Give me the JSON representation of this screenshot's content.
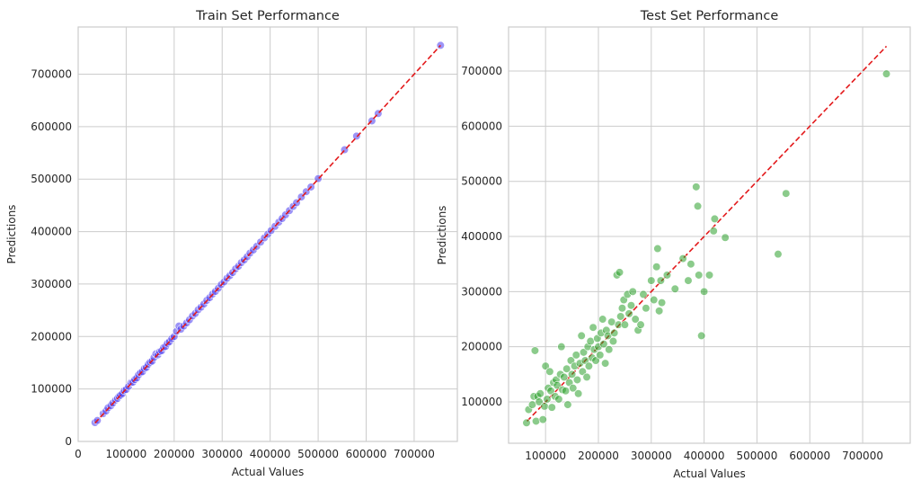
{
  "chart_data": [
    {
      "type": "scatter",
      "title": "Train Set Performance",
      "xlabel": "Actual Values",
      "ylabel": "Predictions",
      "xlim": [
        0,
        790000
      ],
      "ylim": [
        0,
        790000
      ],
      "xticks": [
        0,
        100000,
        200000,
        300000,
        400000,
        500000,
        600000,
        700000
      ],
      "yticks": [
        0,
        100000,
        200000,
        300000,
        400000,
        500000,
        600000,
        700000
      ],
      "grid": true,
      "point_color": "#4a3df0",
      "reference_line": {
        "from": [
          34900,
          34900
        ],
        "to": [
          755000,
          755000
        ],
        "color": "#e31a1c",
        "style": "dashed"
      },
      "series": [
        {
          "points": [
            [
              35000,
              36000
            ],
            [
              40000,
              40000
            ],
            [
              52000,
              53000
            ],
            [
              58000,
              58000
            ],
            [
              62000,
              64000
            ],
            [
              68000,
              68000
            ],
            [
              72000,
              73000
            ],
            [
              78000,
              79000
            ],
            [
              82000,
              82000
            ],
            [
              85000,
              86000
            ],
            [
              88000,
              88000
            ],
            [
              92000,
              91000
            ],
            [
              96000,
              97000
            ],
            [
              100000,
              99000
            ],
            [
              105000,
              105000
            ],
            [
              110000,
              112000
            ],
            [
              114000,
              113000
            ],
            [
              118000,
              118000
            ],
            [
              122000,
              121000
            ],
            [
              126000,
              127000
            ],
            [
              130000,
              131000
            ],
            [
              134000,
              133000
            ],
            [
              138000,
              139000
            ],
            [
              142000,
              141000
            ],
            [
              146000,
              147000
            ],
            [
              150000,
              151000
            ],
            [
              154000,
              153000
            ],
            [
              158000,
              160000
            ],
            [
              162000,
              167000
            ],
            [
              166000,
              165000
            ],
            [
              170000,
              171000
            ],
            [
              174000,
              173000
            ],
            [
              178000,
              179000
            ],
            [
              182000,
              181000
            ],
            [
              186000,
              187000
            ],
            [
              190000,
              190000
            ],
            [
              195000,
              196000
            ],
            [
              200000,
              200000
            ],
            [
              205000,
              210000
            ],
            [
              210000,
              220000
            ],
            [
              214000,
              214000
            ],
            [
              220000,
              220000
            ],
            [
              226000,
              226000
            ],
            [
              232000,
              232000
            ],
            [
              238000,
              239000
            ],
            [
              244000,
              244000
            ],
            [
              250000,
              251000
            ],
            [
              256000,
              256000
            ],
            [
              262000,
              262000
            ],
            [
              268000,
              269000
            ],
            [
              274000,
              274000
            ],
            [
              280000,
              281000
            ],
            [
              286000,
              286000
            ],
            [
              292000,
              292000
            ],
            [
              298000,
              299000
            ],
            [
              304000,
              304000
            ],
            [
              310000,
              311000
            ],
            [
              316000,
              316000
            ],
            [
              322000,
              322000
            ],
            [
              328000,
              329000
            ],
            [
              334000,
              334000
            ],
            [
              340000,
              341000
            ],
            [
              346000,
              346000
            ],
            [
              352000,
              352000
            ],
            [
              358000,
              359000
            ],
            [
              365000,
              365000
            ],
            [
              372000,
              372000
            ],
            [
              380000,
              380000
            ],
            [
              388000,
              388000
            ],
            [
              395000,
              395000
            ],
            [
              402000,
              402000
            ],
            [
              410000,
              410000
            ],
            [
              418000,
              418000
            ],
            [
              425000,
              425000
            ],
            [
              432000,
              432000
            ],
            [
              440000,
              440000
            ],
            [
              448000,
              448000
            ],
            [
              455000,
              455000
            ],
            [
              465000,
              466000
            ],
            [
              475000,
              476000
            ],
            [
              485000,
              485000
            ],
            [
              500000,
              501000
            ],
            [
              555000,
              556000
            ],
            [
              580000,
              582000
            ],
            [
              612000,
              611000
            ],
            [
              625000,
              625000
            ],
            [
              755000,
              755000
            ]
          ]
        }
      ]
    },
    {
      "type": "scatter",
      "title": "Test Set Performance",
      "xlabel": "Actual Values",
      "ylabel": "Predictions",
      "xlim": [
        30000,
        790000
      ],
      "ylim": [
        25000,
        780000
      ],
      "xticks": [
        100000,
        200000,
        300000,
        400000,
        500000,
        600000,
        700000
      ],
      "yticks": [
        100000,
        200000,
        300000,
        400000,
        500000,
        600000,
        700000
      ],
      "grid": true,
      "point_color": "#2ca02c",
      "reference_line": {
        "from": [
          65000,
          65000
        ],
        "to": [
          745000,
          745000
        ],
        "color": "#e31a1c",
        "style": "dashed"
      },
      "series": [
        {
          "points": [
            [
              64000,
              62000
            ],
            [
              68000,
              86000
            ],
            [
              75000,
              95000
            ],
            [
              78000,
              110000
            ],
            [
              80000,
              193000
            ],
            [
              82000,
              65000
            ],
            [
              85000,
              110000
            ],
            [
              88000,
              100000
            ],
            [
              90000,
              115000
            ],
            [
              95000,
              68000
            ],
            [
              98000,
              92000
            ],
            [
              100000,
              165000
            ],
            [
              103000,
              105000
            ],
            [
              105000,
              125000
            ],
            [
              108000,
              155000
            ],
            [
              110000,
              120000
            ],
            [
              112000,
              90000
            ],
            [
              115000,
              135000
            ],
            [
              118000,
              110000
            ],
            [
              120000,
              140000
            ],
            [
              122000,
              130000
            ],
            [
              125000,
              105000
            ],
            [
              128000,
              150000
            ],
            [
              130000,
              200000
            ],
            [
              132000,
              122000
            ],
            [
              135000,
              145000
            ],
            [
              138000,
              120000
            ],
            [
              140000,
              160000
            ],
            [
              142000,
              95000
            ],
            [
              145000,
              135000
            ],
            [
              148000,
              175000
            ],
            [
              150000,
              150000
            ],
            [
              152000,
              125000
            ],
            [
              155000,
              165000
            ],
            [
              158000,
              185000
            ],
            [
              160000,
              140000
            ],
            [
              162000,
              115000
            ],
            [
              165000,
              170000
            ],
            [
              168000,
              220000
            ],
            [
              170000,
              155000
            ],
            [
              172000,
              190000
            ],
            [
              175000,
              175000
            ],
            [
              178000,
              145000
            ],
            [
              180000,
              200000
            ],
            [
              182000,
              165000
            ],
            [
              185000,
              210000
            ],
            [
              188000,
              180000
            ],
            [
              190000,
              235000
            ],
            [
              192000,
              195000
            ],
            [
              195000,
              175000
            ],
            [
              198000,
              215000
            ],
            [
              200000,
              200000
            ],
            [
              203000,
              185000
            ],
            [
              205000,
              225000
            ],
            [
              208000,
              250000
            ],
            [
              210000,
              205000
            ],
            [
              213000,
              170000
            ],
            [
              215000,
              230000
            ],
            [
              218000,
              220000
            ],
            [
              220000,
              195000
            ],
            [
              225000,
              245000
            ],
            [
              228000,
              210000
            ],
            [
              230000,
              225000
            ],
            [
              235000,
              330000
            ],
            [
              238000,
              240000
            ],
            [
              240000,
              335000
            ],
            [
              242000,
              255000
            ],
            [
              245000,
              270000
            ],
            [
              248000,
              285000
            ],
            [
              250000,
              240000
            ],
            [
              255000,
              295000
            ],
            [
              258000,
              260000
            ],
            [
              262000,
              275000
            ],
            [
              265000,
              300000
            ],
            [
              270000,
              250000
            ],
            [
              275000,
              230000
            ],
            [
              280000,
              240000
            ],
            [
              285000,
              295000
            ],
            [
              290000,
              270000
            ],
            [
              300000,
              320000
            ],
            [
              305000,
              285000
            ],
            [
              310000,
              345000
            ],
            [
              312000,
              378000
            ],
            [
              315000,
              265000
            ],
            [
              318000,
              320000
            ],
            [
              320000,
              280000
            ],
            [
              330000,
              330000
            ],
            [
              345000,
              305000
            ],
            [
              360000,
              360000
            ],
            [
              370000,
              320000
            ],
            [
              375000,
              350000
            ],
            [
              385000,
              490000
            ],
            [
              388000,
              455000
            ],
            [
              390000,
              330000
            ],
            [
              395000,
              220000
            ],
            [
              400000,
              300000
            ],
            [
              410000,
              330000
            ],
            [
              418000,
              410000
            ],
            [
              420000,
              432000
            ],
            [
              440000,
              398000
            ],
            [
              540000,
              368000
            ],
            [
              555000,
              478000
            ],
            [
              745000,
              695000
            ]
          ]
        }
      ]
    }
  ]
}
